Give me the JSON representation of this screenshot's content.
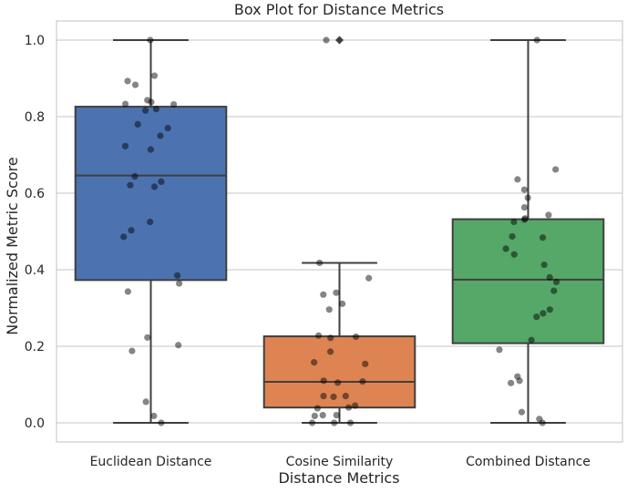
{
  "chart_data": {
    "type": "box",
    "title": "Box Plot for Distance Metrics",
    "xlabel": "Distance Metrics",
    "ylabel": "Normalized Metric Score",
    "ylim": [
      -0.05,
      1.05
    ],
    "yticks": [
      "0.0",
      "0.2",
      "0.4",
      "0.6",
      "0.8",
      "1.0"
    ],
    "grid": "horizontal",
    "categories": [
      "Euclidean Distance",
      "Cosine Similarity",
      "Combined Distance"
    ],
    "boxes": [
      {
        "category": "Euclidean Distance",
        "color": "#4c72b0",
        "whisker_low": 0.0,
        "q1": 0.373,
        "median": 0.646,
        "q3": 0.826,
        "whisker_high": 1.0,
        "outliers": []
      },
      {
        "category": "Cosine Similarity",
        "color": "#dd8452",
        "whisker_low": 0.0,
        "q1": 0.04,
        "median": 0.107,
        "q3": 0.226,
        "whisker_high": 0.418,
        "outliers": [
          1.0
        ]
      },
      {
        "category": "Combined Distance",
        "color": "#55a868",
        "whisker_low": 0.0,
        "q1": 0.208,
        "median": 0.374,
        "q3": 0.532,
        "whisker_high": 1.0,
        "outliers": []
      }
    ],
    "points": [
      [
        1.0,
        0.907,
        0.893,
        0.883,
        0.843,
        0.838,
        0.833,
        0.832,
        0.82,
        0.816,
        0.78,
        0.77,
        0.75,
        0.723,
        0.714,
        0.644,
        0.63,
        0.621,
        0.617,
        0.525,
        0.503,
        0.486,
        0.385,
        0.364,
        0.343,
        0.223,
        0.203,
        0.188,
        0.055,
        0.018,
        0.0
      ],
      [
        1.0,
        0.418,
        0.378,
        0.34,
        0.335,
        0.311,
        0.296,
        0.228,
        0.225,
        0.222,
        0.186,
        0.158,
        0.154,
        0.11,
        0.108,
        0.105,
        0.07,
        0.07,
        0.068,
        0.045,
        0.04,
        0.038,
        0.02,
        0.02,
        0.018,
        0.0,
        0.0,
        0.0
      ],
      [
        1.0,
        0.662,
        0.636,
        0.609,
        0.588,
        0.563,
        0.543,
        0.534,
        0.531,
        0.525,
        0.487,
        0.484,
        0.455,
        0.44,
        0.413,
        0.38,
        0.368,
        0.345,
        0.296,
        0.286,
        0.277,
        0.216,
        0.191,
        0.121,
        0.11,
        0.104,
        0.028,
        0.01,
        0.0
      ]
    ]
  }
}
